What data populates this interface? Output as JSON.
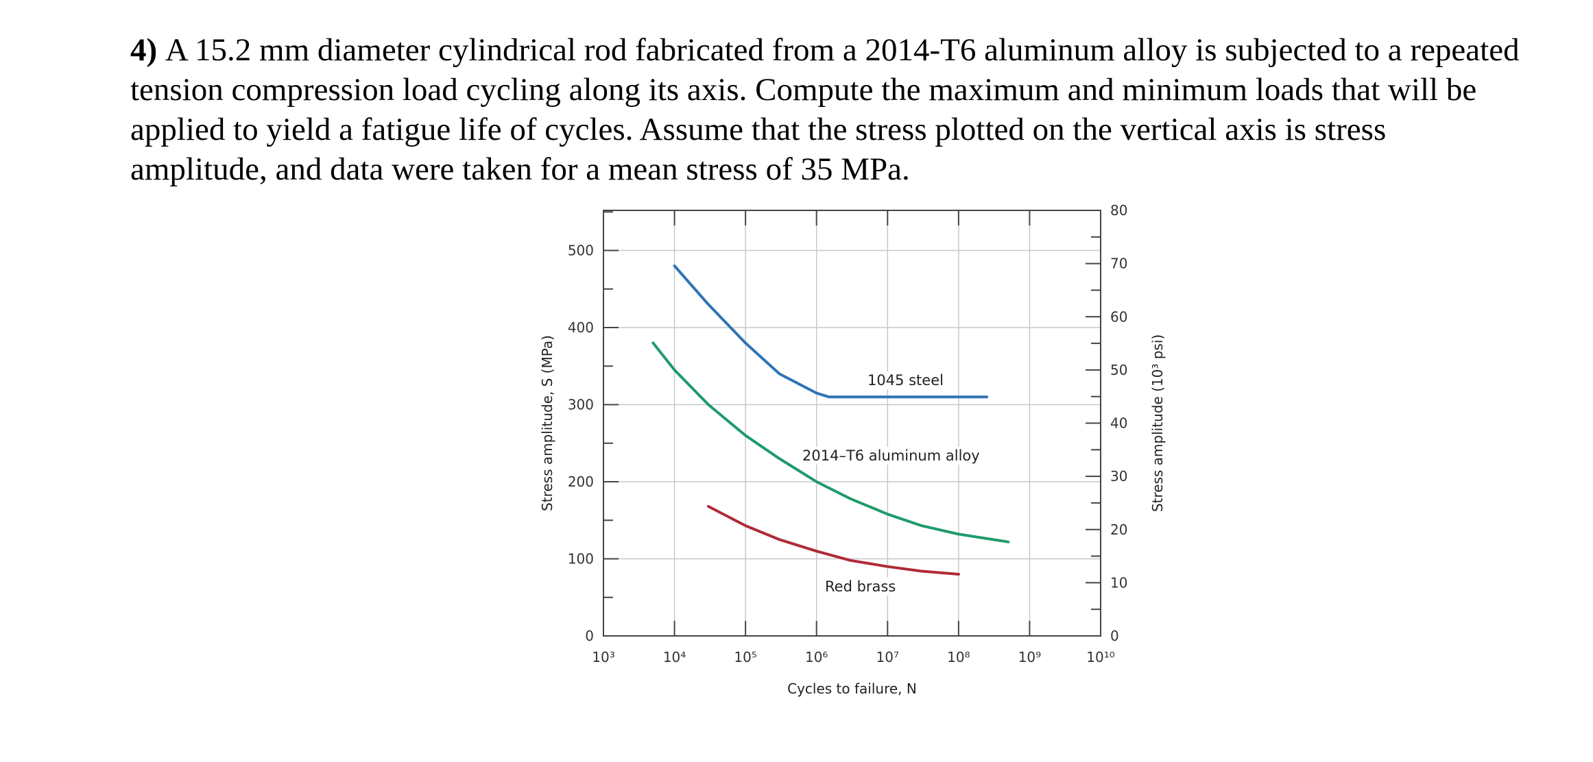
{
  "problem": {
    "number": "4)",
    "text": "A 15.2 mm diameter cylindrical rod fabricated from a 2014-T6 aluminum alloy is subjected to a repeated tension compression load cycling along its axis. Compute the maximum and minimum loads that will be applied to yield a fatigue life of cycles. Assume that the stress plotted on the vertical axis is stress amplitude, and data were taken for a mean stress of 35 MPa."
  },
  "chart_data": {
    "type": "line",
    "xscale": "log",
    "xlabel": "Cycles to failure, N",
    "ylabel": "Stress amplitude, S (MPa)",
    "ylabel_right": "Stress amplitude (10³ psi)",
    "xlim": [
      1000,
      10000000000
    ],
    "ylim": [
      0,
      552
    ],
    "ylim_right": [
      0,
      80
    ],
    "x_tick_exponents": [
      3,
      4,
      5,
      6,
      7,
      8,
      9,
      10
    ],
    "x_tick_labels": [
      "10³",
      "10⁴",
      "10⁵",
      "10⁶",
      "10⁷",
      "10⁸",
      "10⁹",
      "10¹⁰"
    ],
    "y_ticks": [
      0,
      100,
      200,
      300,
      400,
      500
    ],
    "y_ticks_right": [
      0,
      10,
      20,
      30,
      40,
      50,
      60,
      70,
      80
    ],
    "grid": true,
    "series": [
      {
        "name": "1045 steel",
        "color": "#2e74b5",
        "points": [
          [
            10000,
            480
          ],
          [
            30000,
            430
          ],
          [
            100000,
            380
          ],
          [
            300000,
            340
          ],
          [
            1000000,
            315
          ],
          [
            1500000,
            310
          ],
          [
            10000000,
            310
          ],
          [
            100000000,
            310
          ],
          [
            250000000,
            310
          ]
        ]
      },
      {
        "name": "2014–T6 aluminum alloy",
        "color": "#1e9a6a",
        "points": [
          [
            5000,
            380
          ],
          [
            10000,
            345
          ],
          [
            30000,
            300
          ],
          [
            100000,
            260
          ],
          [
            300000,
            230
          ],
          [
            1000000,
            200
          ],
          [
            3000000,
            178
          ],
          [
            10000000,
            158
          ],
          [
            30000000,
            143
          ],
          [
            100000000,
            132
          ],
          [
            500000000,
            122
          ]
        ]
      },
      {
        "name": "Red brass",
        "color": "#b02a37",
        "points": [
          [
            30000,
            168
          ],
          [
            100000,
            143
          ],
          [
            300000,
            125
          ],
          [
            1000000,
            110
          ],
          [
            3000000,
            98
          ],
          [
            10000000,
            90
          ],
          [
            30000000,
            84
          ],
          [
            100000000,
            80
          ]
        ]
      }
    ]
  }
}
